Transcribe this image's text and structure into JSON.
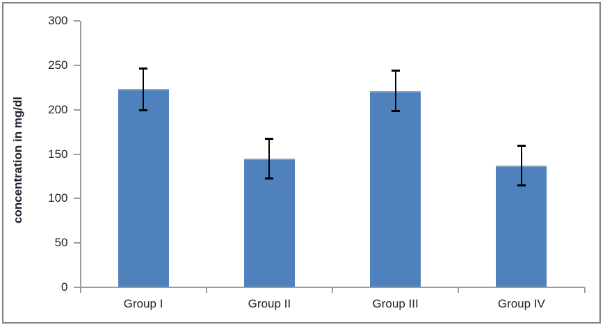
{
  "window": {
    "background": "#ffffff",
    "frame_border_color": "#808080"
  },
  "chart_data": {
    "type": "bar",
    "title": "",
    "xlabel": "",
    "ylabel": "concentration in mg/dl",
    "categories": [
      "Group I",
      "Group II",
      "Group III",
      "Group IV"
    ],
    "series": [
      {
        "name": "concentration",
        "values": [
          223,
          145,
          221,
          137
        ],
        "errors": [
          24,
          23,
          23,
          23
        ]
      }
    ],
    "ylim": [
      0,
      300
    ],
    "ytick_step": 50,
    "ytick_labels": [
      "0",
      "50",
      "100",
      "150",
      "200",
      "250",
      "300"
    ],
    "grid": false,
    "legend": "none",
    "colors": {
      "bar": "#4F81BD",
      "error": "#000000",
      "axis": "#9c9c9c",
      "text": "#1e202b"
    }
  }
}
